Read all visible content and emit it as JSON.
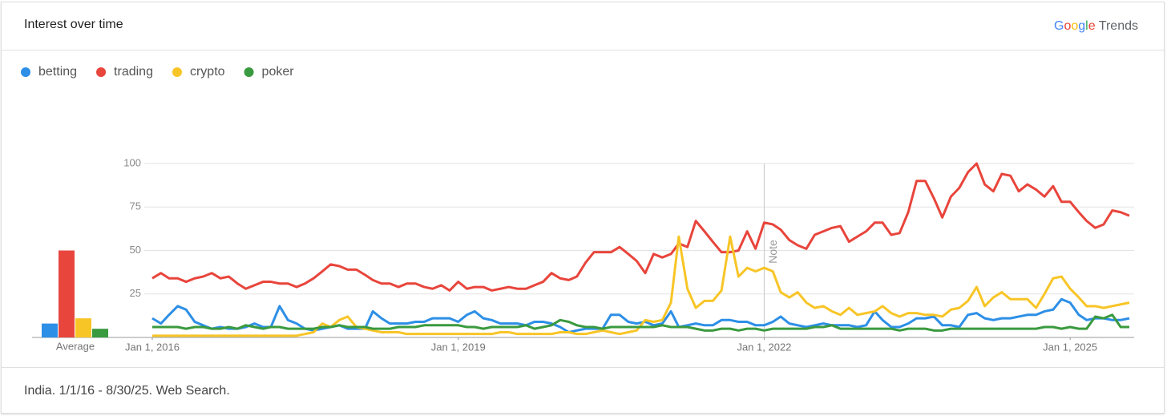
{
  "header": {
    "title": "Interest over time",
    "brand": "Google",
    "product": "Trends"
  },
  "footer": "India. 1/1/16 - 8/30/25. Web Search.",
  "chart_data": {
    "type": "line",
    "x": [
      "2016-01-01",
      "2016-02-01",
      "2016-03-01",
      "2016-04-01",
      "2016-05-01",
      "2016-06-01",
      "2016-07-01",
      "2016-08-01",
      "2016-09-01",
      "2016-10-01",
      "2016-11-01",
      "2016-12-01",
      "2017-01-01",
      "2017-02-01",
      "2017-03-01",
      "2017-04-01",
      "2017-05-01",
      "2017-06-01",
      "2017-07-01",
      "2017-08-01",
      "2017-09-01",
      "2017-10-01",
      "2017-11-01",
      "2017-12-01",
      "2018-01-01",
      "2018-02-01",
      "2018-03-01",
      "2018-04-01",
      "2018-05-01",
      "2018-06-01",
      "2018-07-01",
      "2018-08-01",
      "2018-09-01",
      "2018-10-01",
      "2018-11-01",
      "2018-12-01",
      "2019-01-01",
      "2019-02-01",
      "2019-03-01",
      "2019-04-01",
      "2019-05-01",
      "2019-06-01",
      "2019-07-01",
      "2019-08-01",
      "2019-09-01",
      "2019-10-01",
      "2019-11-01",
      "2019-12-01",
      "2020-01-01",
      "2020-02-01",
      "2020-03-01",
      "2020-04-01",
      "2020-05-01",
      "2020-06-01",
      "2020-07-01",
      "2020-08-01",
      "2020-09-01",
      "2020-10-01",
      "2020-11-01",
      "2020-12-01",
      "2021-01-01",
      "2021-02-01",
      "2021-03-01",
      "2021-04-01",
      "2021-05-01",
      "2021-06-01",
      "2021-07-01",
      "2021-08-01",
      "2021-09-01",
      "2021-10-01",
      "2021-11-01",
      "2021-12-01",
      "2022-01-01",
      "2022-02-01",
      "2022-03-01",
      "2022-04-01",
      "2022-05-01",
      "2022-06-01",
      "2022-07-01",
      "2022-08-01",
      "2022-09-01",
      "2022-10-01",
      "2022-11-01",
      "2022-12-01",
      "2023-01-01",
      "2023-02-01",
      "2023-03-01",
      "2023-04-01",
      "2023-05-01",
      "2023-06-01",
      "2023-07-01",
      "2023-08-01",
      "2023-09-01",
      "2023-10-01",
      "2023-11-01",
      "2023-12-01",
      "2024-01-01",
      "2024-02-01",
      "2024-03-01",
      "2024-04-01",
      "2024-05-01",
      "2024-06-01",
      "2024-07-01",
      "2024-08-01",
      "2024-09-01",
      "2024-10-01",
      "2024-11-01",
      "2024-12-01",
      "2025-01-01",
      "2025-02-01",
      "2025-03-01",
      "2025-04-01",
      "2025-05-01",
      "2025-06-01",
      "2025-07-01",
      "2025-08-01"
    ],
    "xlim": [
      "2016-01-01",
      "2025-08-01"
    ],
    "xticks": [
      {
        "value": "2016-01-01",
        "label": "Jan 1, 2016"
      },
      {
        "value": "2019-01-01",
        "label": "Jan 1, 2019"
      },
      {
        "value": "2022-01-01",
        "label": "Jan 1, 2022"
      },
      {
        "value": "2025-01-01",
        "label": "Jan 1, 2025"
      }
    ],
    "ylim": [
      0,
      100
    ],
    "yticks": [
      25,
      50,
      75,
      100
    ],
    "grid": true,
    "annotation": {
      "text": "Note",
      "x": "2022-01-01"
    },
    "series": [
      {
        "name": "betting",
        "color": "#2d8fe6",
        "values": [
          11,
          8,
          13,
          18,
          16,
          9,
          7,
          5,
          6,
          5,
          5,
          6,
          8,
          6,
          6,
          18,
          10,
          8,
          5,
          4,
          5,
          6,
          7,
          5,
          5,
          5,
          15,
          11,
          8,
          8,
          8,
          9,
          9,
          11,
          11,
          11,
          9,
          13,
          15,
          11,
          10,
          8,
          8,
          8,
          7,
          9,
          9,
          8,
          6,
          3,
          4,
          5,
          5,
          5,
          13,
          13,
          9,
          8,
          9,
          7,
          8,
          15,
          6,
          7,
          8,
          7,
          7,
          10,
          10,
          9,
          9,
          7,
          7,
          9,
          12,
          8,
          7,
          6,
          7,
          8,
          7,
          7,
          7,
          6,
          7,
          15,
          10,
          6,
          6,
          8,
          11,
          11,
          12,
          7,
          7,
          6,
          13,
          14,
          11,
          10,
          11,
          11,
          12,
          13,
          13,
          15,
          16,
          22,
          20,
          13,
          10,
          11,
          11,
          10,
          10,
          11
        ]
      },
      {
        "name": "trading",
        "color": "#e8453c",
        "values": [
          34,
          37,
          34,
          34,
          32,
          34,
          35,
          37,
          34,
          35,
          31,
          28,
          30,
          32,
          32,
          31,
          31,
          29,
          31,
          34,
          38,
          42,
          41,
          39,
          39,
          36,
          33,
          31,
          31,
          29,
          31,
          31,
          29,
          28,
          30,
          27,
          32,
          28,
          29,
          29,
          27,
          28,
          29,
          28,
          28,
          30,
          32,
          37,
          34,
          33,
          35,
          43,
          49,
          49,
          49,
          52,
          48,
          44,
          37,
          48,
          46,
          48,
          54,
          52,
          67,
          61,
          55,
          49,
          49,
          50,
          61,
          51,
          66,
          65,
          62,
          56,
          53,
          51,
          59,
          61,
          63,
          64,
          55,
          58,
          61,
          66,
          66,
          59,
          60,
          72,
          90,
          90,
          80,
          69,
          81,
          86,
          95,
          100,
          88,
          84,
          94,
          93,
          84,
          88,
          85,
          81,
          87,
          78,
          78,
          72,
          67,
          63,
          65,
          73,
          72,
          70
        ]
      },
      {
        "name": "crypto",
        "color": "#f8c527",
        "values": [
          1,
          1,
          1,
          1,
          1,
          1,
          1,
          1,
          1,
          1,
          1,
          1,
          1,
          1,
          1,
          1,
          1,
          1,
          2,
          3,
          8,
          6,
          10,
          12,
          6,
          5,
          4,
          3,
          3,
          3,
          2,
          2,
          2,
          2,
          2,
          2,
          2,
          2,
          2,
          2,
          2,
          3,
          3,
          2,
          2,
          2,
          2,
          2,
          3,
          3,
          2,
          2,
          3,
          4,
          3,
          2,
          3,
          4,
          10,
          9,
          10,
          20,
          58,
          28,
          17,
          21,
          21,
          27,
          58,
          35,
          40,
          38,
          40,
          38,
          26,
          23,
          26,
          20,
          17,
          18,
          15,
          13,
          17,
          13,
          14,
          15,
          18,
          14,
          12,
          14,
          14,
          13,
          13,
          12,
          16,
          17,
          21,
          29,
          18,
          23,
          26,
          22,
          22,
          22,
          17,
          25,
          34,
          35,
          28,
          23,
          18,
          18,
          17,
          18,
          19,
          20
        ]
      },
      {
        "name": "poker",
        "color": "#3a9a3f",
        "values": [
          6,
          6,
          6,
          6,
          5,
          6,
          6,
          5,
          5,
          6,
          5,
          7,
          6,
          5,
          6,
          6,
          5,
          5,
          5,
          5,
          6,
          6,
          7,
          6,
          6,
          6,
          5,
          5,
          5,
          6,
          6,
          6,
          7,
          7,
          7,
          7,
          7,
          6,
          6,
          5,
          6,
          6,
          6,
          6,
          7,
          5,
          6,
          7,
          10,
          9,
          7,
          6,
          6,
          5,
          6,
          6,
          6,
          6,
          6,
          6,
          7,
          6,
          6,
          6,
          5,
          4,
          4,
          5,
          5,
          4,
          5,
          5,
          4,
          5,
          5,
          5,
          5,
          5,
          6,
          6,
          7,
          5,
          5,
          5,
          5,
          5,
          5,
          5,
          4,
          5,
          5,
          5,
          4,
          4,
          5,
          5,
          5,
          5,
          5,
          5,
          5,
          5,
          5,
          5,
          5,
          6,
          6,
          5,
          6,
          5,
          5,
          12,
          11,
          13,
          6,
          6
        ]
      }
    ],
    "averages": {
      "label": "Average",
      "values": [
        8,
        50,
        11,
        5
      ]
    }
  }
}
